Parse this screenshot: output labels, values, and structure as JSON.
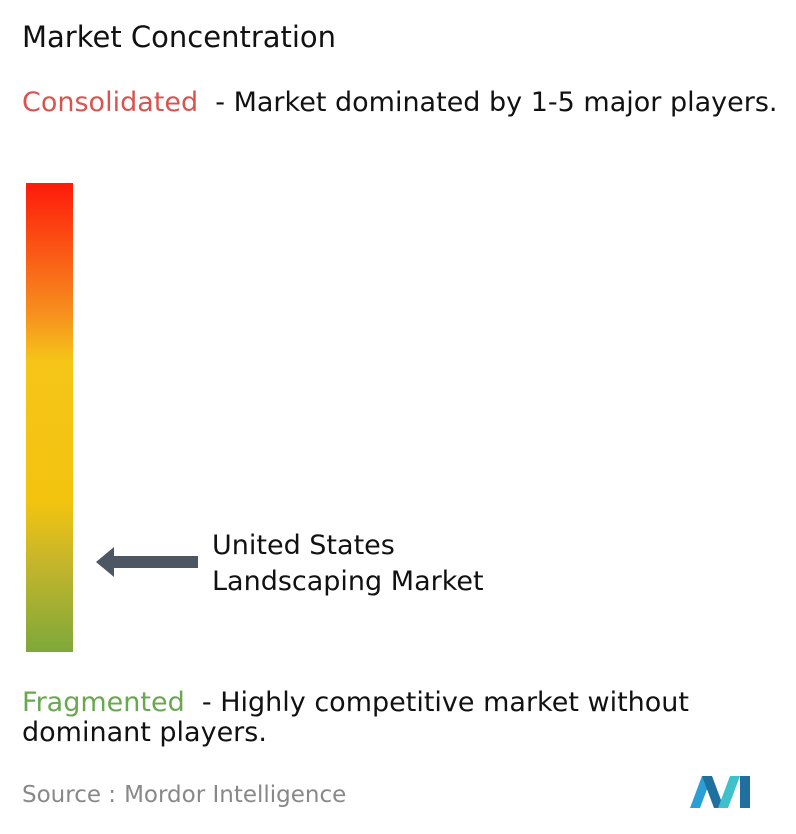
{
  "title": "Market Concentration",
  "consolidated": {
    "term": "Consolidated",
    "description": "- Market dominated by 1-5 major players."
  },
  "marker": {
    "label_lines": [
      "United States",
      "Landscaping Market"
    ]
  },
  "fragmented": {
    "term": "Fragmented",
    "description": "- Highly competitive market without dominant players."
  },
  "source": {
    "prefix": "Source :",
    "name": "Mordor Intelligence"
  }
}
